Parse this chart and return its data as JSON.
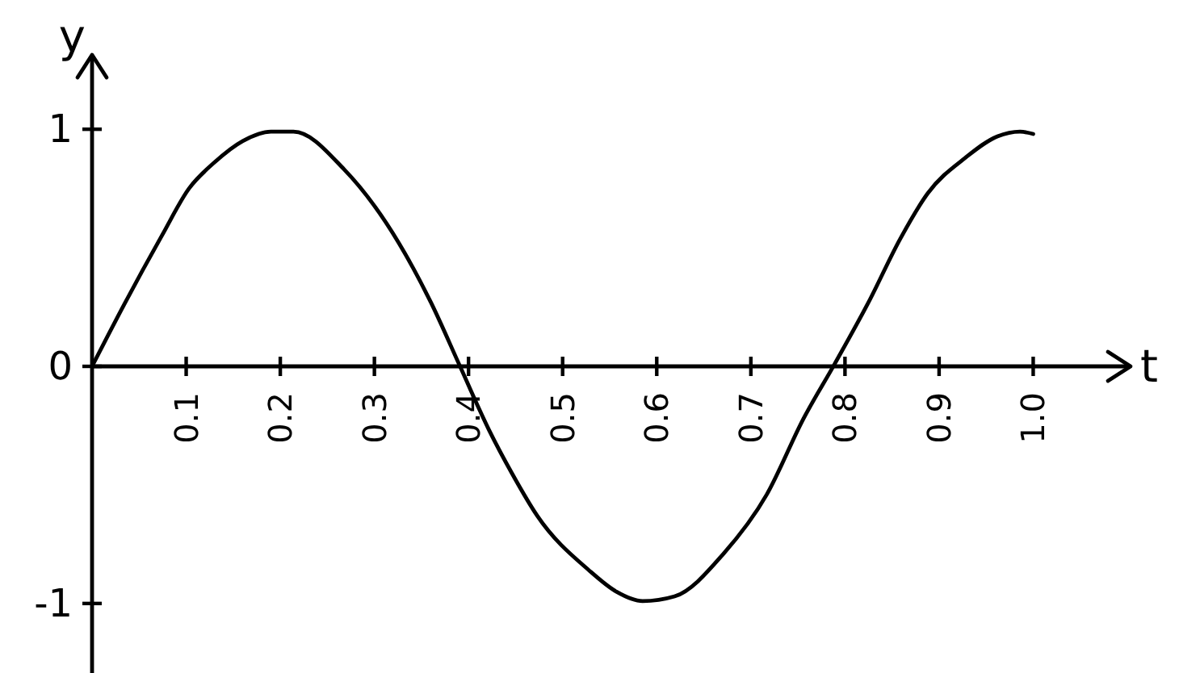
{
  "chart_data": {
    "type": "line",
    "xlabel": "t",
    "ylabel": "y",
    "x": [
      0,
      0.034,
      0.074,
      0.103,
      0.13,
      0.16,
      0.19,
      0.214,
      0.268,
      0.326,
      0.36,
      0.391,
      0.422,
      0.446,
      0.473,
      0.528,
      0.557,
      0.585,
      0.619,
      0.671,
      0.717,
      0.756,
      0.789,
      0.825,
      0.859,
      0.888,
      0.928,
      0.962,
      0.986,
      1.0
    ],
    "series": [
      {
        "color": "#000000",
        "values": [
          0,
          0.26,
          0.55,
          0.75,
          0.86,
          0.95,
          0.99,
          0.99,
          0.83,
          0.52,
          0.27,
          0,
          -0.27,
          -0.45,
          -0.63,
          -0.86,
          -0.95,
          -0.99,
          -0.97,
          -0.79,
          -0.54,
          -0.22,
          0.01,
          0.27,
          0.54,
          0.73,
          0.88,
          0.97,
          0.99,
          0.98
        ]
      }
    ],
    "xlim": [
      0,
      1.1
    ],
    "ylim": [
      -1.3,
      1.3
    ],
    "xticks": [
      0.1,
      0.2,
      0.3,
      0.4,
      0.5,
      0.6,
      0.7,
      0.8,
      0.9,
      {
        "value": 1,
        "label": "1.0"
      }
    ],
    "yticks": [
      -1,
      0,
      1
    ],
    "line_style": "solid"
  }
}
